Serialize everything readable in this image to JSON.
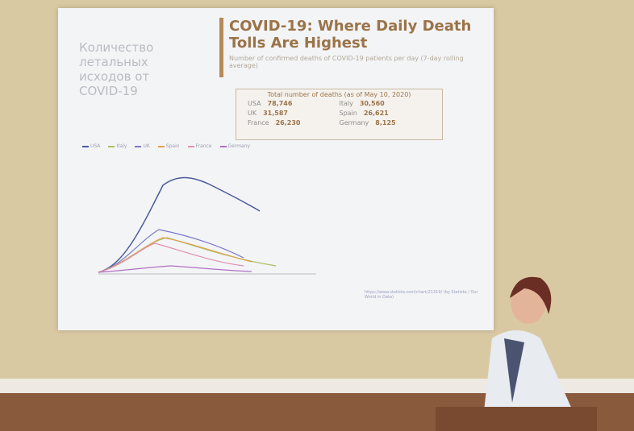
{
  "slide": {
    "side_title": "Количество летальных исходов от COVID-19",
    "title": "COVID-19: Where Daily Death Tolls Are Highest",
    "subtitle": "Number of confirmed deaths of COVID-19 patients per day (7-day rolling average)",
    "totals_heading": "Total number of deaths (as of May 10, 2020)",
    "totals": [
      {
        "country": "USA",
        "deaths": "78,746"
      },
      {
        "country": "Italy",
        "deaths": "30,560"
      },
      {
        "country": "UK",
        "deaths": "31,587"
      },
      {
        "country": "Spain",
        "deaths": "26,621"
      },
      {
        "country": "France",
        "deaths": "26,230"
      },
      {
        "country": "Germany",
        "deaths": "8,125"
      }
    ],
    "legend": [
      "USA",
      "Italy",
      "UK",
      "Spain",
      "France",
      "Germany"
    ],
    "source": "https://www.statista.com/chart/21319/ (by Statista / Our World in Data)"
  }
}
